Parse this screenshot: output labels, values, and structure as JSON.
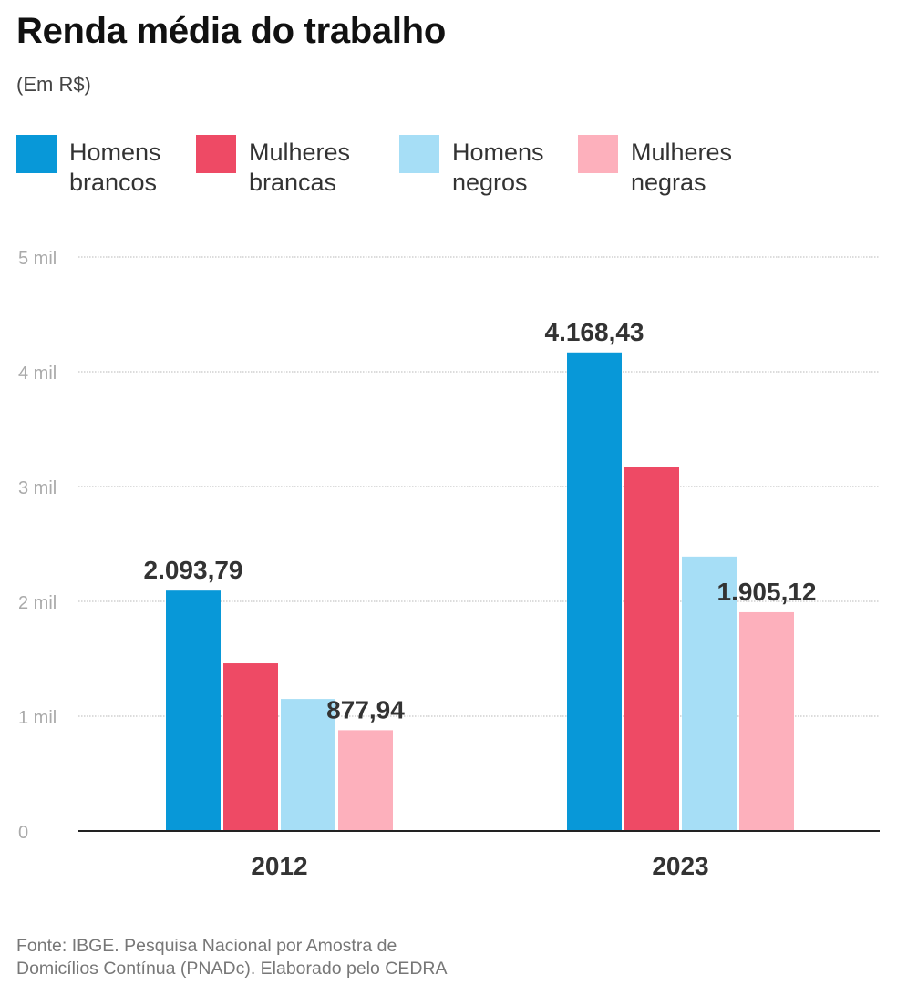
{
  "title": "Renda média do trabalho",
  "subtitle": "(Em R$)",
  "legend": [
    {
      "label_line1": "Homens",
      "label_line2": "brancos",
      "color": "#0898d8"
    },
    {
      "label_line1": "Mulheres",
      "label_line2": "brancas",
      "color": "#ee4a65"
    },
    {
      "label_line1": "Homens",
      "label_line2": "negros",
      "color": "#a6def6"
    },
    {
      "label_line1": "Mulheres",
      "label_line2": "negras",
      "color": "#fdb0bc"
    }
  ],
  "chart_data": {
    "type": "bar",
    "title": "Renda média do trabalho",
    "ylabel": "(Em R$)",
    "xlabel": "",
    "categories": [
      "2012",
      "2023"
    ],
    "ylim": [
      0,
      5000
    ],
    "yticks": [
      0,
      1000,
      2000,
      3000,
      4000,
      5000
    ],
    "ytick_labels": [
      "0",
      "1 mil",
      "2 mil",
      "3 mil",
      "4 mil",
      "5 mil"
    ],
    "grid": true,
    "series": [
      {
        "name": "Homens brancos",
        "color": "#0898d8",
        "values": [
          2093.79,
          4168.43
        ],
        "labels": [
          "2.093,79",
          "4.168,43"
        ]
      },
      {
        "name": "Mulheres brancas",
        "color": "#ee4a65",
        "values": [
          1460,
          3170
        ],
        "labels": [
          null,
          null
        ]
      },
      {
        "name": "Homens negros",
        "color": "#a6def6",
        "values": [
          1150,
          2390
        ],
        "labels": [
          null,
          null
        ]
      },
      {
        "name": "Mulheres negras",
        "color": "#fdb0bc",
        "values": [
          877.94,
          1905.12
        ],
        "labels": [
          "877,94",
          "1.905,12"
        ]
      }
    ]
  },
  "source": {
    "line1": "Fonte: IBGE. Pesquisa Nacional por Amostra de",
    "line2": "Domicílios Contínua (PNADc). Elaborado pelo CEDRA"
  }
}
